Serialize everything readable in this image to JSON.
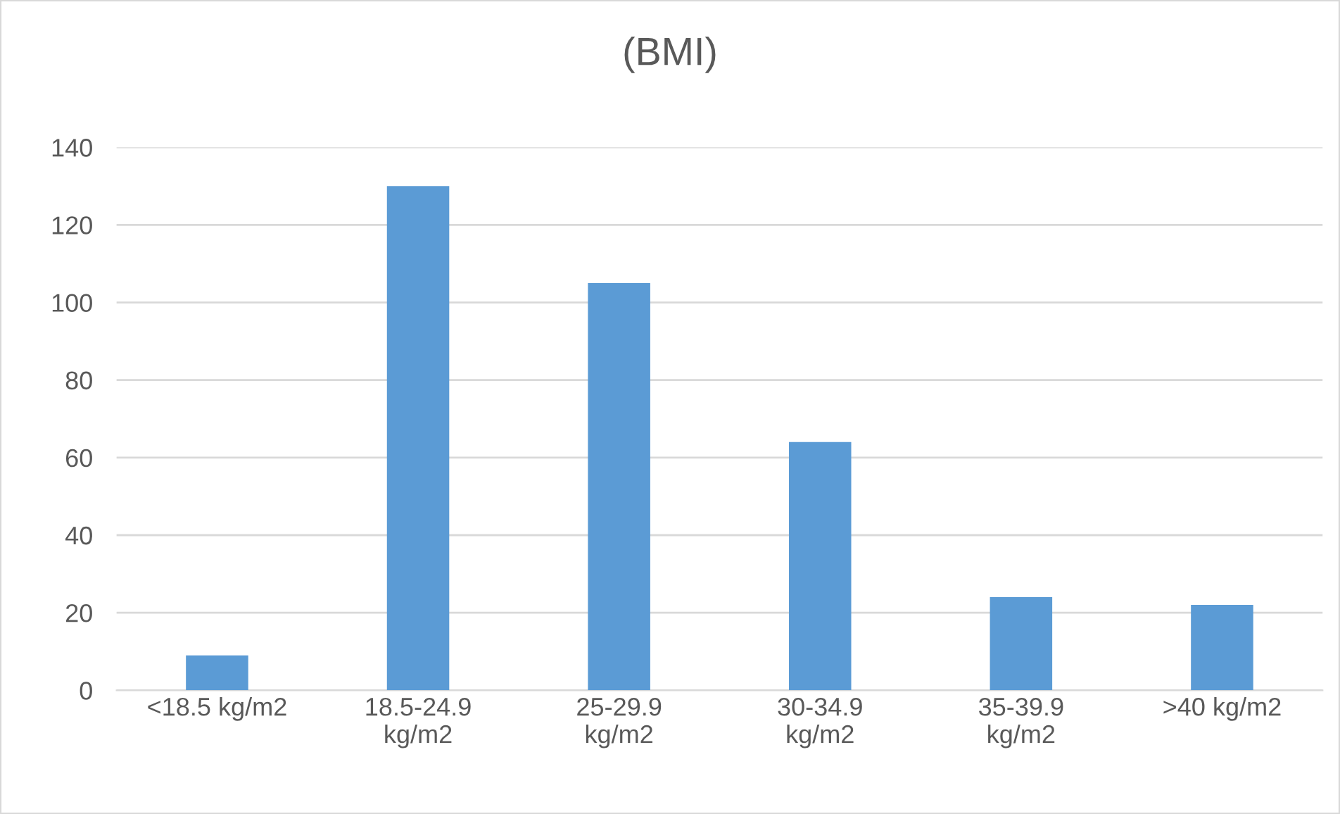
{
  "chart_data": {
    "type": "bar",
    "title": "(BMI)",
    "categories": [
      "<18.5 kg/m2",
      "18.5-24.9 kg/m2",
      "25-29.9 kg/m2",
      "30-34.9 kg/m2",
      "35-39.9 kg/m2",
      ">40 kg/m2"
    ],
    "values": [
      9,
      130,
      105,
      64,
      24,
      22
    ],
    "color": "#5b9bd5",
    "ylim": [
      0,
      140
    ],
    "yticks": [
      0,
      20,
      40,
      60,
      80,
      100,
      120,
      140
    ],
    "grid": "y",
    "legend": false
  }
}
